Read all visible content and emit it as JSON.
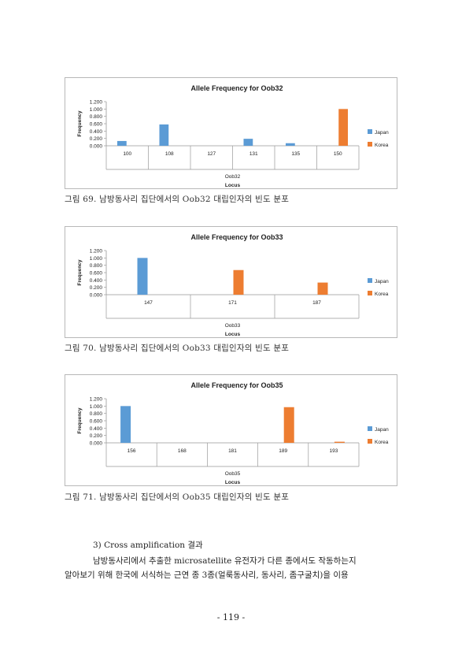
{
  "chart_data": [
    {
      "type": "bar",
      "title": "Allele Frequency for Oob32",
      "ylabel": "Frequency",
      "xlabel": "Locus",
      "group_label": "Oob32",
      "categories": [
        "100",
        "108",
        "127",
        "131",
        "135",
        "150"
      ],
      "series": [
        {
          "name": "Japan",
          "color": "#5b9bd5",
          "values": [
            0.13,
            0.58,
            0.0,
            0.19,
            0.07,
            0.0
          ]
        },
        {
          "name": "Korea",
          "color": "#ed7d31",
          "values": [
            0.0,
            0.0,
            0.0,
            0.0,
            0.0,
            1.0
          ]
        }
      ],
      "yticks": [
        "0.000",
        "0.200",
        "0.400",
        "0.600",
        "0.800",
        "1.000",
        "1.200"
      ],
      "ylim": [
        0,
        1.2
      ],
      "legend": "right"
    },
    {
      "type": "bar",
      "title": "Allele Frequency for Oob33",
      "ylabel": "Frequency",
      "xlabel": "Locus",
      "group_label": "Oob33",
      "categories": [
        "147",
        "171",
        "187"
      ],
      "series": [
        {
          "name": "Japan",
          "color": "#5b9bd5",
          "values": [
            1.0,
            0.0,
            0.0
          ]
        },
        {
          "name": "Korea",
          "color": "#ed7d31",
          "values": [
            0.0,
            0.67,
            0.33
          ]
        }
      ],
      "yticks": [
        "0.000",
        "0.200",
        "0.400",
        "0.600",
        "0.800",
        "1.000",
        "1.200"
      ],
      "ylim": [
        0,
        1.2
      ],
      "legend": "right"
    },
    {
      "type": "bar",
      "title": "Allele Frequency for Oob35",
      "ylabel": "Frequency",
      "xlabel": "Locus",
      "group_label": "Oob35",
      "categories": [
        "156",
        "168",
        "181",
        "189",
        "193"
      ],
      "series": [
        {
          "name": "Japan",
          "color": "#5b9bd5",
          "values": [
            1.0,
            0.0,
            0.0,
            0.0,
            0.0
          ]
        },
        {
          "name": "Korea",
          "color": "#ed7d31",
          "values": [
            0.0,
            0.0,
            0.0,
            0.97,
            0.03
          ]
        }
      ],
      "yticks": [
        "0.000",
        "0.200",
        "0.400",
        "0.600",
        "0.800",
        "1.000",
        "1.200"
      ],
      "ylim": [
        0,
        1.2
      ],
      "legend": "right"
    }
  ],
  "captions": [
    "그림 69.  남방동사리 집단에서의 Oob32 대립인자의 빈도 분포",
    "그림 70.  남방동사리 집단에서의 Oob33 대립인자의 빈도 분포",
    "그림 71.  남방동사리 집단에서의 Oob35 대립인자의 빈도 분포"
  ],
  "section": {
    "heading": "3) Cross amplification 결과",
    "line1": "남방동사리에서 추출한 microsatellite 유전자가 다른 종에서도 작동하는지",
    "line2": "알아보기 위해 한국에 서식하는 근연 종 3종(얼룩동사리, 동사리, 좀구굴치)을 이용"
  },
  "page_number": "- 119 -"
}
